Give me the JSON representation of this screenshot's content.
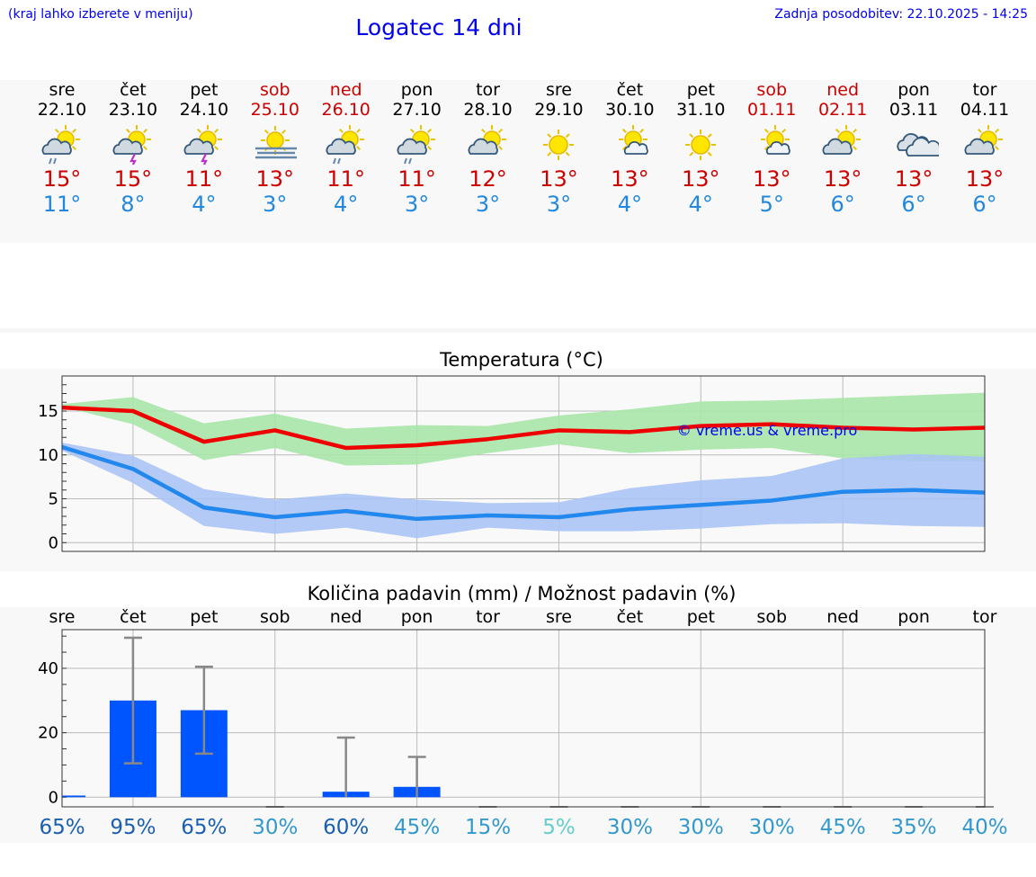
{
  "header": {
    "hint": "(kraj lahko izberete v meniju)",
    "title": "Logatec 14 dni",
    "updated": "Zadnja posodobitev: 22.10.2025 - 14:25"
  },
  "days": [
    {
      "name": "sre",
      "date": "22.10",
      "weekend": false,
      "icon": "sun-cloud-rain-icon",
      "max": "15°",
      "min": "11°"
    },
    {
      "name": "čet",
      "date": "23.10",
      "weekend": false,
      "icon": "sun-cloud-thunder-icon",
      "max": "15°",
      "min": "8°"
    },
    {
      "name": "pet",
      "date": "24.10",
      "weekend": false,
      "icon": "sun-cloud-thunder-icon",
      "max": "11°",
      "min": "4°"
    },
    {
      "name": "sob",
      "date": "25.10",
      "weekend": true,
      "icon": "sun-fog-icon",
      "max": "13°",
      "min": "3°"
    },
    {
      "name": "ned",
      "date": "26.10",
      "weekend": true,
      "icon": "sun-cloud-rain-icon",
      "max": "11°",
      "min": "4°"
    },
    {
      "name": "pon",
      "date": "27.10",
      "weekend": false,
      "icon": "sun-cloud-rain-icon",
      "max": "11°",
      "min": "3°"
    },
    {
      "name": "tor",
      "date": "28.10",
      "weekend": false,
      "icon": "sun-cloud-icon",
      "max": "12°",
      "min": "3°"
    },
    {
      "name": "sre",
      "date": "29.10",
      "weekend": false,
      "icon": "sun-icon",
      "max": "13°",
      "min": "3°"
    },
    {
      "name": "čet",
      "date": "30.10",
      "weekend": false,
      "icon": "sun-small-cloud-icon",
      "max": "13°",
      "min": "4°"
    },
    {
      "name": "pet",
      "date": "31.10",
      "weekend": false,
      "icon": "sun-icon",
      "max": "13°",
      "min": "4°"
    },
    {
      "name": "sob",
      "date": "01.11",
      "weekend": true,
      "icon": "sun-small-cloud-icon",
      "max": "13°",
      "min": "5°"
    },
    {
      "name": "ned",
      "date": "02.11",
      "weekend": true,
      "icon": "sun-cloud-icon",
      "max": "13°",
      "min": "6°"
    },
    {
      "name": "pon",
      "date": "03.11",
      "weekend": false,
      "icon": "cloudy-icon",
      "max": "13°",
      "min": "6°"
    },
    {
      "name": "tor",
      "date": "04.11",
      "weekend": false,
      "icon": "sun-cloud-icon",
      "max": "13°",
      "min": "6°"
    }
  ],
  "colors": {
    "max": "#cc0000",
    "min": "#2288dd",
    "weekend": "#cc0000",
    "maxBand": "#a8e6a8",
    "minBand": "#aac4f4",
    "maxLine": "#ee0000",
    "minLine": "#2288ee",
    "bar": "#0055ff",
    "errbar": "#888888"
  },
  "chart_data": [
    {
      "type": "line",
      "title": "Temperatura (°C)",
      "watermark": "© vreme.us & vreme.pro",
      "ylim": [
        -1,
        19
      ],
      "yticks": [
        0,
        5,
        10,
        15
      ],
      "x": [
        0,
        1,
        2,
        3,
        4,
        5,
        6,
        7,
        8,
        9,
        10,
        11,
        12,
        13
      ],
      "series": [
        {
          "name": "max",
          "values": [
            15.4,
            15.0,
            11.5,
            12.8,
            10.8,
            11.1,
            11.8,
            12.8,
            12.6,
            13.3,
            13.5,
            13.1,
            12.9,
            13.1
          ],
          "band_low": [
            15.5,
            13.5,
            9.4,
            10.8,
            8.8,
            8.9,
            10.2,
            11.2,
            10.2,
            10.6,
            10.8,
            9.6,
            9.3,
            9.3
          ],
          "band_high": [
            15.8,
            16.6,
            13.6,
            14.7,
            13.0,
            13.4,
            13.3,
            14.5,
            15.2,
            16.1,
            16.2,
            16.5,
            16.8,
            17.1
          ]
        },
        {
          "name": "min",
          "values": [
            10.9,
            8.4,
            4.0,
            2.9,
            3.6,
            2.7,
            3.1,
            2.9,
            3.8,
            4.3,
            4.8,
            5.8,
            6.0,
            5.7
          ],
          "band_low": [
            10.5,
            6.8,
            1.9,
            1.0,
            1.7,
            0.5,
            1.7,
            1.3,
            1.3,
            1.6,
            2.1,
            2.2,
            1.9,
            1.8
          ],
          "band_high": [
            11.4,
            9.9,
            6.1,
            4.9,
            5.6,
            4.9,
            4.5,
            4.6,
            6.2,
            7.1,
            7.6,
            9.6,
            10.1,
            9.8
          ]
        }
      ]
    },
    {
      "type": "bar",
      "title": "Količina padavin (mm) / Možnost padavin (%)",
      "categories": [
        "sre",
        "čet",
        "pet",
        "sob",
        "ned",
        "pon",
        "tor",
        "sre",
        "čet",
        "pet",
        "sob",
        "ned",
        "pon",
        "tor"
      ],
      "ylim": [
        -3,
        52
      ],
      "yticks": [
        0,
        20,
        40
      ],
      "values": [
        0.5,
        30,
        27,
        0,
        1.7,
        3.2,
        0,
        0,
        0,
        0,
        0,
        0,
        0,
        0
      ],
      "err_low": [
        0,
        10.5,
        13.5,
        0,
        0,
        0,
        0,
        0,
        0,
        0,
        0,
        0,
        0,
        0
      ],
      "err_high": [
        0,
        49.5,
        40.5,
        0,
        18.5,
        12.5,
        0,
        0,
        0,
        0,
        0,
        0,
        0,
        0
      ],
      "probability": [
        "65%",
        "95%",
        "65%",
        "30%",
        "60%",
        "45%",
        "15%",
        "5%",
        "30%",
        "30%",
        "30%",
        "45%",
        "35%",
        "40%"
      ],
      "probability_colors": [
        "#1a5fb0",
        "#1a5fb0",
        "#1a5fb0",
        "#3399cc",
        "#1a5fb0",
        "#3399cc",
        "#3399cc",
        "#66cccc",
        "#3399cc",
        "#3399cc",
        "#3399cc",
        "#3399cc",
        "#3399cc",
        "#3399cc"
      ]
    }
  ]
}
